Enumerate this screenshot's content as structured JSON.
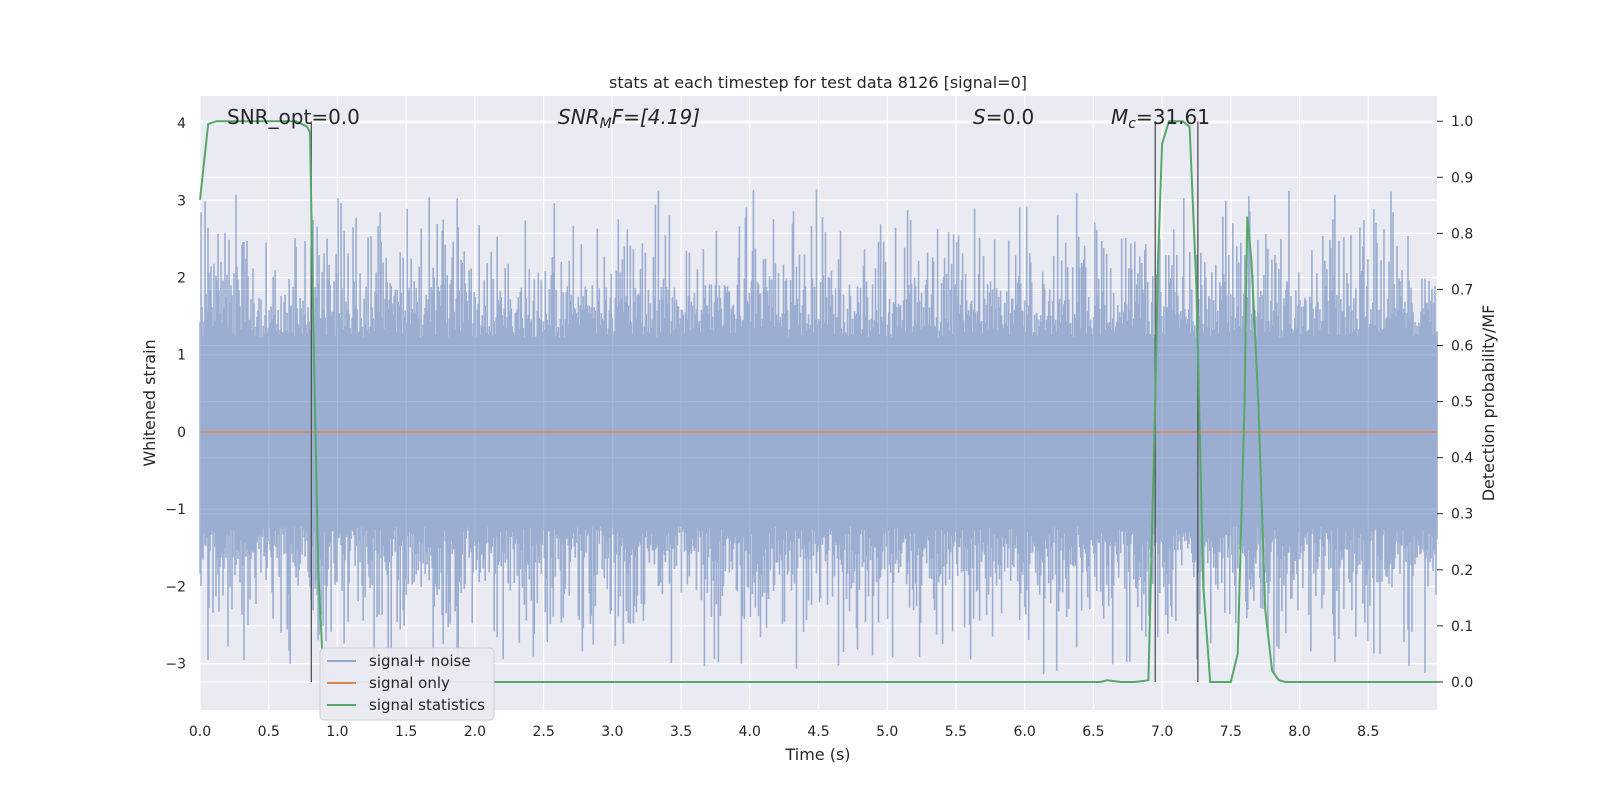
{
  "chart_data": {
    "type": "line",
    "title": "stats at each timestep for test data 8126 [signal=0]",
    "xlabel": "Time (s)",
    "ylabel_left": "Whitened strain",
    "ylabel_right": "Detection probability/MF",
    "xlim": [
      0.0,
      9.0
    ],
    "ylim_left": [
      -3.6,
      4.35
    ],
    "ylim_right": [
      -0.05,
      1.045
    ],
    "grid": true,
    "legend_position": "lower-left",
    "x_ticks": [
      "0.0",
      "0.5",
      "1.0",
      "1.5",
      "2.0",
      "2.5",
      "3.0",
      "3.5",
      "4.0",
      "4.5",
      "5.0",
      "5.5",
      "6.0",
      "6.5",
      "7.0",
      "7.5",
      "8.0",
      "8.5"
    ],
    "y_ticks_left": [
      "−3",
      "−2",
      "−1",
      "0",
      "1",
      "2",
      "3",
      "4"
    ],
    "y_ticks_right": [
      "0.0",
      "0.1",
      "0.2",
      "0.3",
      "0.4",
      "0.5",
      "0.6",
      "0.7",
      "0.8",
      "0.9",
      "1.0"
    ],
    "annotations": {
      "snr_opt": "SNR_opt=0.0",
      "snr_mf_main": "SNR",
      "snr_mf_sub": "M",
      "snr_mf_rest": "F=[4.19]",
      "s_italic": "S",
      "s_rest": "=0.0",
      "mc_main": "M",
      "mc_sub": "c",
      "mc_rest": "=31.61"
    },
    "series": [
      {
        "name": "signal+ noise",
        "color": "#4c72b0",
        "description_level": "noise band approx ±1.8 with spikes to ±3",
        "amplitude_envelope": 1.75
      },
      {
        "name": "signal only",
        "color": "#dd8452",
        "x": [
          0.0,
          9.0
        ],
        "y": [
          0.0,
          0.0
        ]
      },
      {
        "name": "signal statistics",
        "color": "#55a868",
        "axis": "right",
        "x": [
          0.0,
          0.06,
          0.12,
          0.2,
          0.4,
          0.6,
          0.7,
          0.78,
          0.8,
          0.82,
          0.86,
          0.9,
          1.0,
          2.0,
          3.0,
          4.0,
          5.0,
          6.0,
          6.5,
          6.55,
          6.6,
          6.7,
          6.8,
          6.9,
          6.95,
          6.97,
          7.0,
          7.05,
          7.1,
          7.15,
          7.2,
          7.25,
          7.3,
          7.35,
          7.4,
          7.45,
          7.5,
          7.55,
          7.6,
          7.62,
          7.65,
          7.7,
          7.75,
          7.8,
          7.85,
          7.9,
          8.0,
          8.5,
          9.0
        ],
        "y": [
          0.86,
          0.995,
          1.0,
          1.0,
          1.0,
          1.0,
          1.0,
          0.99,
          0.98,
          0.7,
          0.2,
          0.0,
          0.0,
          0.0,
          0.0,
          0.0,
          0.0,
          0.0,
          0.0,
          0.0,
          0.003,
          0.0,
          0.0,
          0.003,
          0.5,
          0.75,
          0.96,
          1.0,
          1.0,
          1.0,
          0.99,
          0.7,
          0.17,
          0.0,
          0.0,
          0.0,
          0.0,
          0.05,
          0.5,
          0.83,
          0.75,
          0.5,
          0.13,
          0.02,
          0.003,
          0.0,
          0.0,
          0.0,
          0.0
        ]
      }
    ],
    "vertical_lines": [
      0.81,
      6.95,
      7.26
    ]
  }
}
